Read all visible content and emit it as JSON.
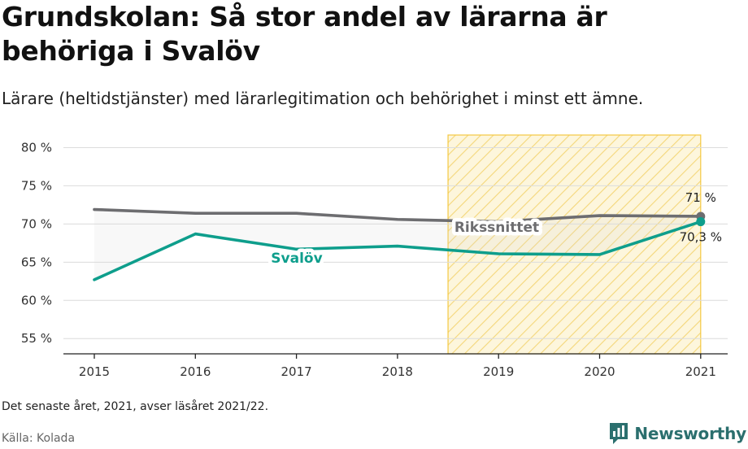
{
  "title": "Grundskolan: Så stor andel av lärarna är behöriga i Svalöv",
  "subtitle": "Lärare (heltidstjänster) med lärarlegitimation och behörighet i minst ett ämne.",
  "note": "Det senaste året, 2021, avser läsåret 2021/22.",
  "source": "Källa: Kolada",
  "brand": "Newsworthy",
  "colors": {
    "svalov": "#0e9e8c",
    "rikssnittet": "#6d6d70",
    "highlight": "#f4c842",
    "brand": "#2b6f6e"
  },
  "chart_data": {
    "type": "line",
    "x": [
      "2015",
      "2016",
      "2017",
      "2018",
      "2019",
      "2020",
      "2021"
    ],
    "y_ticks": [
      "55 %",
      "60 %",
      "65 %",
      "70 %",
      "75 %",
      "80 %"
    ],
    "y_tick_values": [
      55,
      60,
      65,
      70,
      75,
      80
    ],
    "ylim": [
      53,
      82.5
    ],
    "highlight_range": [
      "2018.5",
      "2021"
    ],
    "grid": true,
    "series": [
      {
        "name": "Rikssnittet",
        "key": "rikssnittet",
        "values": [
          71.9,
          71.4,
          71.4,
          70.6,
          70.3,
          71.1,
          71.0
        ],
        "end_label": "71 %"
      },
      {
        "name": "Svalöv",
        "key": "svalov",
        "values": [
          62.7,
          68.7,
          66.7,
          67.1,
          66.1,
          66.0,
          70.3
        ],
        "end_label": "70,3 %"
      }
    ]
  }
}
